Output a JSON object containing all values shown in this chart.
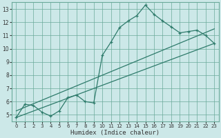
{
  "xlabel": "Humidex (Indice chaleur)",
  "background_color": "#cce8e8",
  "grid_color": "#6aaa9a",
  "line_color": "#2d7a6a",
  "xlim": [
    -0.5,
    23.5
  ],
  "ylim": [
    4.5,
    13.5
  ],
  "xticks": [
    0,
    1,
    2,
    3,
    4,
    5,
    6,
    7,
    8,
    9,
    10,
    11,
    12,
    13,
    14,
    15,
    16,
    17,
    18,
    19,
    20,
    21,
    22,
    23
  ],
  "yticks": [
    5,
    6,
    7,
    8,
    9,
    10,
    11,
    12,
    13
  ],
  "series": [
    [
      0,
      4.8
    ],
    [
      1,
      5.8
    ],
    [
      2,
      5.7
    ],
    [
      3,
      5.2
    ],
    [
      4,
      4.9
    ],
    [
      5,
      5.3
    ],
    [
      6,
      6.3
    ],
    [
      7,
      6.5
    ],
    [
      8,
      6.0
    ],
    [
      9,
      5.9
    ],
    [
      10,
      9.5
    ],
    [
      11,
      10.5
    ],
    [
      12,
      11.6
    ],
    [
      13,
      12.1
    ],
    [
      14,
      12.5
    ],
    [
      15,
      13.3
    ],
    [
      16,
      12.6
    ],
    [
      17,
      12.1
    ],
    [
      18,
      11.65
    ],
    [
      19,
      11.2
    ],
    [
      20,
      11.3
    ],
    [
      21,
      11.4
    ],
    [
      22,
      11.0
    ],
    [
      23,
      10.4
    ]
  ],
  "line1_pts": [
    [
      0,
      4.8
    ],
    [
      23,
      10.4
    ]
  ],
  "line2_pts": [
    [
      0,
      5.3
    ],
    [
      23,
      11.5
    ]
  ]
}
